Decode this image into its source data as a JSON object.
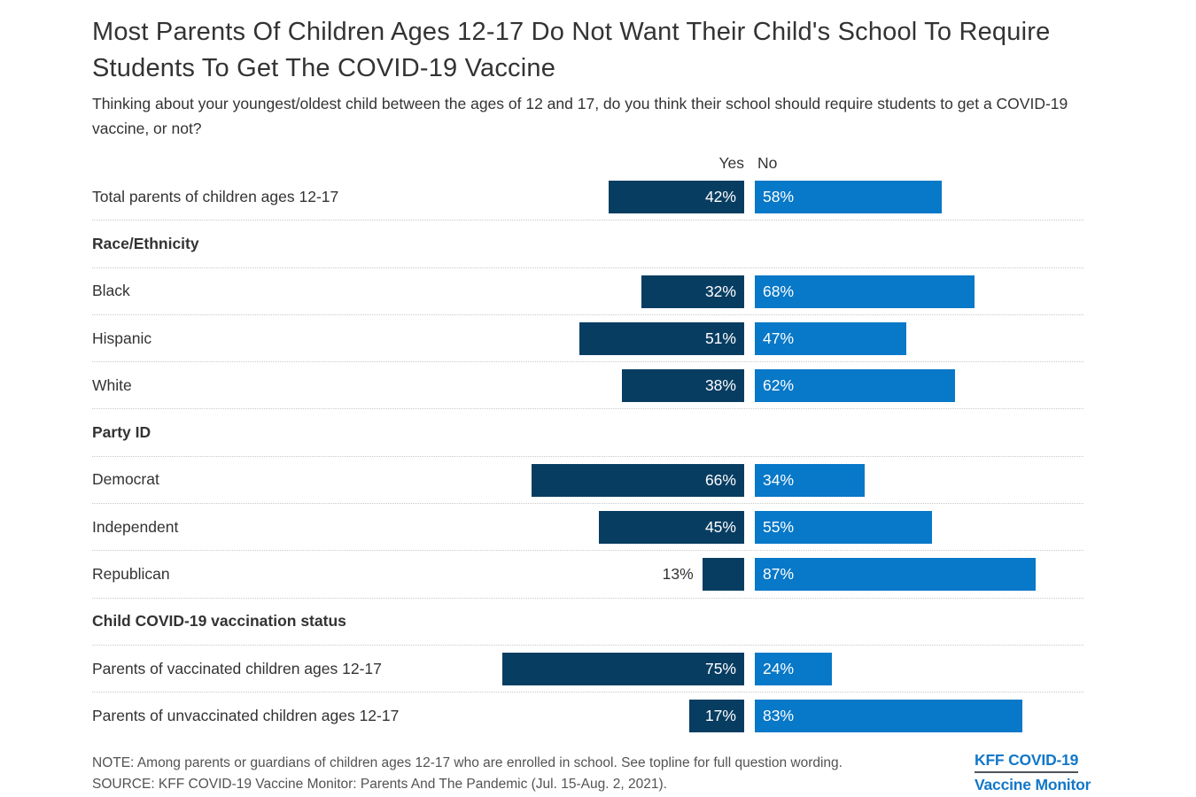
{
  "title": "Most Parents Of Children Ages 12-17 Do Not Want Their Child's School To Require Students To Get The COVID-19 Vaccine",
  "subtitle": "Thinking about your youngest/oldest child between the ages of 12 and 17, do you think their school should require students to get a COVID-19 vaccine, or not?",
  "legend": {
    "yes": "Yes",
    "no": "No"
  },
  "colors": {
    "yes": "#083D62",
    "no": "#0878C8",
    "text": "#333333",
    "note": "#535353",
    "separator": "#c9c9c9",
    "logo_blue": "#1277C8"
  },
  "chart_data": {
    "type": "bar",
    "orientation": "diverging-horizontal",
    "unit": "%",
    "series_names": [
      "Yes",
      "No"
    ],
    "value_range": [
      0,
      100
    ],
    "outside_label_threshold": 15,
    "rows": [
      {
        "type": "data",
        "label": "Total parents of children ages 12-17",
        "yes": 42,
        "no": 58
      },
      {
        "type": "section",
        "label": "Race/Ethnicity"
      },
      {
        "type": "data",
        "label": "Black",
        "yes": 32,
        "no": 68
      },
      {
        "type": "data",
        "label": "Hispanic",
        "yes": 51,
        "no": 47
      },
      {
        "type": "data",
        "label": "White",
        "yes": 38,
        "no": 62
      },
      {
        "type": "section",
        "label": "Party ID"
      },
      {
        "type": "data",
        "label": "Democrat",
        "yes": 66,
        "no": 34
      },
      {
        "type": "data",
        "label": "Independent",
        "yes": 45,
        "no": 55
      },
      {
        "type": "data",
        "label": "Republican",
        "yes": 13,
        "no": 87
      },
      {
        "type": "section",
        "label": "Child COVID-19 vaccination status"
      },
      {
        "type": "data",
        "label": "Parents of vaccinated children ages 12-17",
        "yes": 75,
        "no": 24
      },
      {
        "type": "data",
        "label": "Parents of unvaccinated children ages 12-17",
        "yes": 17,
        "no": 83
      }
    ]
  },
  "footer": {
    "note": "NOTE: Among parents or guardians of children ages 12-17 who are enrolled in school. See topline for full question wording.",
    "source": "SOURCE: KFF COVID-19 Vaccine Monitor: Parents And The Pandemic (Jul. 15-Aug. 2, 2021).",
    "logo_line1": "KFF COVID-19",
    "logo_line2": "Vaccine Monitor"
  }
}
